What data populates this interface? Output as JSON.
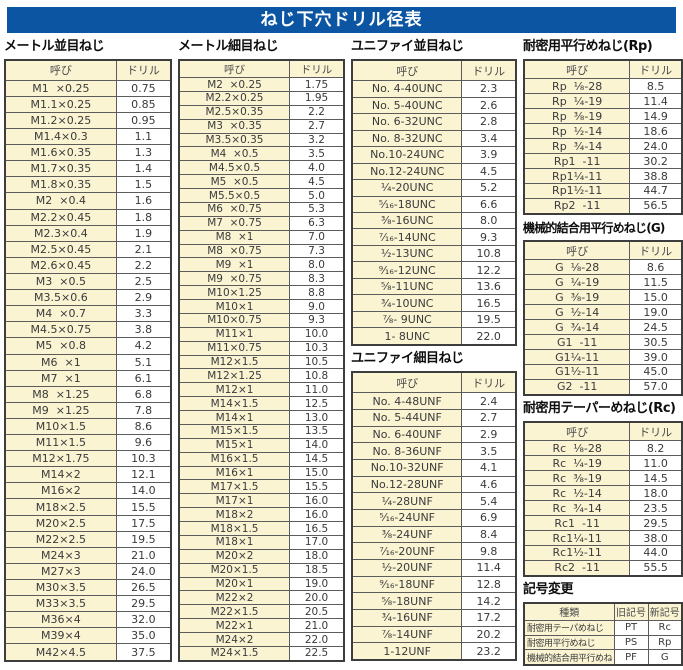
{
  "page_title": "ねじ下穴ドリル径表",
  "colors": {
    "banner_blue": "#0b55a2",
    "cell_cream": "#faf4d3",
    "border_gray": "#3d3d3d"
  },
  "sections": {
    "metric_coarse": {
      "heading": "メートル並目ねじ",
      "table": {
        "headers": [
          "呼び",
          "ドリル"
        ],
        "rows": [
          [
            "M1  ×0.25",
            "0.75"
          ],
          [
            "M1.1×0.25",
            "0.85"
          ],
          [
            "M1.2×0.25",
            "0.95"
          ],
          [
            "M1.4×0.3",
            "1.1"
          ],
          [
            "M1.6×0.35",
            "1.3"
          ],
          [
            "M1.7×0.35",
            "1.4"
          ],
          [
            "M1.8×0.35",
            "1.5"
          ],
          [
            "M2  ×0.4",
            "1.6"
          ],
          [
            "M2.2×0.45",
            "1.8"
          ],
          [
            "M2.3×0.4",
            "1.9"
          ],
          [
            "M2.5×0.45",
            "2.1"
          ],
          [
            "M2.6×0.45",
            "2.2"
          ],
          [
            "M3  ×0.5",
            "2.5"
          ],
          [
            "M3.5×0.6",
            "2.9"
          ],
          [
            "M4  ×0.7",
            "3.3"
          ],
          [
            "M4.5×0.75",
            "3.8"
          ],
          [
            "M5  ×0.8",
            "4.2"
          ],
          [
            "M6  ×1",
            "5.1"
          ],
          [
            "M7  ×1",
            "6.1"
          ],
          [
            "M8  ×1.25",
            "6.8"
          ],
          [
            "M9  ×1.25",
            "7.8"
          ],
          [
            "M10×1.5",
            "8.6"
          ],
          [
            "M11×1.5",
            "9.6"
          ],
          [
            "M12×1.75",
            "10.3"
          ],
          [
            "M14×2",
            "12.1"
          ],
          [
            "M16×2",
            "14.0"
          ],
          [
            "M18×2.5",
            "15.5"
          ],
          [
            "M20×2.5",
            "17.5"
          ],
          [
            "M22×2.5",
            "19.5"
          ],
          [
            "M24×3",
            "21.0"
          ],
          [
            "M27×3",
            "24.0"
          ],
          [
            "M30×3.5",
            "26.5"
          ],
          [
            "M33×3.5",
            "29.5"
          ],
          [
            "M36×4",
            "32.0"
          ],
          [
            "M39×4",
            "35.0"
          ],
          [
            "M42×4.5",
            "37.5"
          ]
        ]
      }
    },
    "metric_fine": {
      "heading": "メートル細目ねじ",
      "table": {
        "headers": [
          "呼び",
          "ドリル"
        ],
        "rows": [
          [
            "M2  ×0.25",
            "1.75"
          ],
          [
            "M2.2×0.25",
            "1.95"
          ],
          [
            "M2.5×0.35",
            "2.2"
          ],
          [
            "M3  ×0.35",
            "2.7"
          ],
          [
            "M3.5×0.35",
            "3.2"
          ],
          [
            "M4  ×0.5",
            "3.5"
          ],
          [
            "M4.5×0.5",
            "4.0"
          ],
          [
            "M5  ×0.5",
            "4.5"
          ],
          [
            "M5.5×0.5",
            "5.0"
          ],
          [
            "M6  ×0.75",
            "5.3"
          ],
          [
            "M7  ×0.75",
            "6.3"
          ],
          [
            "M8  ×1",
            "7.0"
          ],
          [
            "M8  ×0.75",
            "7.3"
          ],
          [
            "M9  ×1",
            "8.0"
          ],
          [
            "M9  ×0.75",
            "8.3"
          ],
          [
            "M10×1.25",
            "8.8"
          ],
          [
            "M10×1",
            "9.0"
          ],
          [
            "M10×0.75",
            "9.3"
          ],
          [
            "M11×1",
            "10.0"
          ],
          [
            "M11×0.75",
            "10.3"
          ],
          [
            "M12×1.5",
            "10.5"
          ],
          [
            "M12×1.25",
            "10.8"
          ],
          [
            "M12×1",
            "11.0"
          ],
          [
            "M14×1.5",
            "12.5"
          ],
          [
            "M14×1",
            "13.0"
          ],
          [
            "M15×1.5",
            "13.5"
          ],
          [
            "M15×1",
            "14.0"
          ],
          [
            "M16×1.5",
            "14.5"
          ],
          [
            "M16×1",
            "15.0"
          ],
          [
            "M17×1.5",
            "15.5"
          ],
          [
            "M17×1",
            "16.0"
          ],
          [
            "M18×2",
            "16.0"
          ],
          [
            "M18×1.5",
            "16.5"
          ],
          [
            "M18×1",
            "17.0"
          ],
          [
            "M20×2",
            "18.0"
          ],
          [
            "M20×1.5",
            "18.5"
          ],
          [
            "M20×1",
            "19.0"
          ],
          [
            "M22×2",
            "20.0"
          ],
          [
            "M22×1.5",
            "20.5"
          ],
          [
            "M22×1",
            "21.0"
          ],
          [
            "M24×2",
            "22.0"
          ],
          [
            "M24×1.5",
            "22.5"
          ]
        ]
      }
    },
    "unified_coarse": {
      "heading": "ユニファイ並目ねじ",
      "table": {
        "headers": [
          "呼び",
          "ドリル"
        ],
        "rows": [
          [
            "No. 4-40UNC",
            "2.3"
          ],
          [
            "No. 5-40UNC",
            "2.6"
          ],
          [
            "No. 6-32UNC",
            "2.8"
          ],
          [
            "No. 8-32UNC",
            "3.4"
          ],
          [
            "No.10-24UNC",
            "3.9"
          ],
          [
            "No.12-24UNC",
            "4.5"
          ],
          [
            "¹⁄₄-20UNC",
            "5.2"
          ],
          [
            "⁵⁄₁₆-18UNC",
            "6.6"
          ],
          [
            "³⁄₈-16UNC",
            "8.0"
          ],
          [
            "⁷⁄₁₆-14UNC",
            "9.3"
          ],
          [
            "¹⁄₂-13UNC",
            "10.8"
          ],
          [
            "⁹⁄₁₆-12UNC",
            "12.2"
          ],
          [
            "⁵⁄₈-11UNC",
            "13.6"
          ],
          [
            "³⁄₄-10UNC",
            "16.5"
          ],
          [
            "⁷⁄₈- 9UNC",
            "19.5"
          ],
          [
            "1- 8UNC",
            "22.0"
          ]
        ]
      }
    },
    "unified_fine": {
      "heading": "ユニファイ細目ねじ",
      "table": {
        "headers": [
          "呼び",
          "ドリル"
        ],
        "rows": [
          [
            "No. 4-48UNF",
            "2.4"
          ],
          [
            "No. 5-44UNF",
            "2.7"
          ],
          [
            "No. 6-40UNF",
            "2.9"
          ],
          [
            "No. 8-36UNF",
            "3.5"
          ],
          [
            "No.10-32UNF",
            "4.1"
          ],
          [
            "No.12-28UNF",
            "4.6"
          ],
          [
            "¹⁄₄-28UNF",
            "5.4"
          ],
          [
            "⁵⁄₁₆-24UNF",
            "6.9"
          ],
          [
            "³⁄₈-24UNF",
            "8.4"
          ],
          [
            "⁷⁄₁₆-20UNF",
            "9.8"
          ],
          [
            "¹⁄₂-20UNF",
            "11.4"
          ],
          [
            "⁹⁄₁₆-18UNF",
            "12.8"
          ],
          [
            "⁵⁄₈-18UNF",
            "14.2"
          ],
          [
            "³⁄₄-16UNF",
            "17.2"
          ],
          [
            "⁷⁄₈-14UNF",
            "20.2"
          ],
          [
            "1-12UNF",
            "23.2"
          ]
        ]
      }
    },
    "rp": {
      "heading": "耐密用平行めねじ(Rp)",
      "table": {
        "headers": [
          "呼び",
          "ドリル"
        ],
        "rows": [
          [
            "Rp  ¹⁄₈-28",
            "8.5"
          ],
          [
            "Rp  ¹⁄₄-19",
            "11.4"
          ],
          [
            "Rp  ³⁄₈-19",
            "14.9"
          ],
          [
            "Rp  ¹⁄₂-14",
            "18.6"
          ],
          [
            "Rp  ³⁄₄-14",
            "24.0"
          ],
          [
            "Rp1  -11",
            "30.2"
          ],
          [
            "Rp1¹⁄₄-11",
            "38.8"
          ],
          [
            "Rp1¹⁄₂-11",
            "44.7"
          ],
          [
            "Rp2  -11",
            "56.5"
          ]
        ]
      }
    },
    "g": {
      "heading": "機械的結合用平行めねじ(G)",
      "table": {
        "headers": [
          "呼び",
          "ドリル"
        ],
        "rows": [
          [
            "G  ¹⁄₈-28",
            "8.6"
          ],
          [
            "G  ¹⁄₄-19",
            "11.5"
          ],
          [
            "G  ³⁄₈-19",
            "15.0"
          ],
          [
            "G  ¹⁄₂-14",
            "19.0"
          ],
          [
            "G  ³⁄₄-14",
            "24.5"
          ],
          [
            "G1  -11",
            "30.5"
          ],
          [
            "G1¹⁄₄-11",
            "39.0"
          ],
          [
            "G1¹⁄₂-11",
            "45.0"
          ],
          [
            "G2  -11",
            "57.0"
          ]
        ]
      }
    },
    "rc": {
      "heading": "耐密用テーパーめねじ(Rc)",
      "table": {
        "headers": [
          "呼び",
          "ドリル"
        ],
        "rows": [
          [
            "Rc  ¹⁄₈-28",
            "8.2"
          ],
          [
            "Rc  ¹⁄₄-19",
            "11.0"
          ],
          [
            "Rc  ³⁄₈-19",
            "14.5"
          ],
          [
            "Rc  ¹⁄₂-14",
            "18.0"
          ],
          [
            "Rc  ³⁄₄-14",
            "23.5"
          ],
          [
            "Rc1  -11",
            "29.5"
          ],
          [
            "Rc1¹⁄₄-11",
            "38.0"
          ],
          [
            "Rc1¹⁄₂-11",
            "44.0"
          ],
          [
            "Rc2  -11",
            "55.5"
          ]
        ]
      }
    },
    "symbol_change": {
      "heading": "記号変更",
      "table": {
        "headers": [
          "種類",
          "旧記号",
          "新記号"
        ],
        "rows": [
          [
            "耐密用テーパめねじ",
            "PT",
            "Rc"
          ],
          [
            "耐密用平行めねじ",
            "PS",
            "Rp"
          ],
          [
            "機械的結合用平行めねじ",
            "PF",
            "G"
          ]
        ]
      }
    }
  }
}
